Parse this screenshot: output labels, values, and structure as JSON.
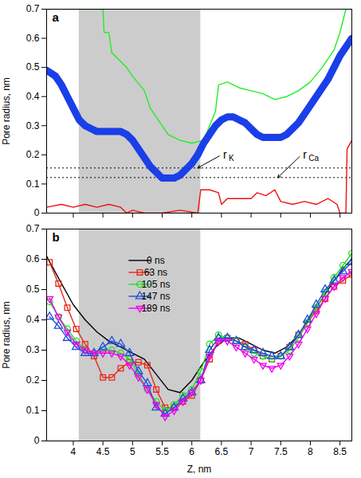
{
  "chart_data": [
    {
      "type": "line",
      "panel_label": "a",
      "y_label": "Pore radius, nm",
      "xlim": [
        3.55,
        8.7
      ],
      "xticks": [
        4,
        4.5,
        5,
        5.5,
        6,
        6.5,
        7,
        7.5,
        8,
        8.5
      ],
      "ylim": [
        0,
        0.7
      ],
      "yticks": [
        0,
        0.1,
        0.2,
        0.3,
        0.4,
        0.5,
        0.6,
        0.7
      ],
      "grid": false,
      "tick_labels": "y",
      "shaded_region": {
        "x": [
          4.1,
          6.15
        ],
        "color": "#cccccc"
      },
      "reference_lines": [
        {
          "label": "r",
          "subscript": "K",
          "value": 0.155,
          "line_style": "dotted",
          "label_at": [
            6.5,
            0.2
          ],
          "arrow_to": [
            6.1,
            0.155
          ]
        },
        {
          "label": "r",
          "subscript": "Ca",
          "value": 0.122,
          "line_style": "dotted",
          "label_at": [
            7.85,
            0.2
          ],
          "arrow_to": [
            7.45,
            0.122
          ]
        }
      ],
      "series": [
        {
          "color": "#22ee22",
          "line_style": "solid",
          "marker": "none",
          "x": [
            3.55,
            4.5,
            4.52,
            4.6,
            4.65,
            4.8,
            4.9,
            5.0,
            5.2,
            5.3,
            5.4,
            5.5,
            5.6,
            5.8,
            6.0,
            6.2,
            6.3,
            6.4,
            6.45,
            6.6,
            6.8,
            7.0,
            7.2,
            7.4,
            7.6,
            7.8,
            8.0,
            8.2,
            8.4,
            8.5,
            8.6,
            8.7
          ],
          "values": [
            0.7,
            0.7,
            0.62,
            0.62,
            0.55,
            0.52,
            0.5,
            0.47,
            0.42,
            0.36,
            0.33,
            0.3,
            0.27,
            0.25,
            0.24,
            0.25,
            0.3,
            0.35,
            0.44,
            0.45,
            0.43,
            0.42,
            0.41,
            0.39,
            0.4,
            0.42,
            0.45,
            0.5,
            0.56,
            0.62,
            0.7,
            0.7
          ]
        },
        {
          "color": "#ee1111",
          "line_style": "solid",
          "marker": "none",
          "x": [
            3.55,
            3.8,
            4.0,
            4.2,
            4.4,
            4.6,
            4.8,
            4.9,
            5.0,
            5.2,
            5.5,
            5.8,
            6.1,
            6.15,
            6.3,
            6.45,
            6.5,
            6.6,
            6.8,
            7.0,
            7.1,
            7.25,
            7.4,
            7.5,
            7.7,
            7.9,
            8.1,
            8.3,
            8.45,
            8.5,
            8.6,
            8.62,
            8.7
          ],
          "values": [
            0.02,
            0.03,
            0.02,
            0.03,
            0.02,
            0.03,
            0.02,
            0,
            0.01,
            0,
            0,
            0.01,
            0,
            0.08,
            0.08,
            0.07,
            0.03,
            0.05,
            0.05,
            0.05,
            0.07,
            0.06,
            0.08,
            0.04,
            0.03,
            0.04,
            0.03,
            0.05,
            0.03,
            0,
            0,
            0.22,
            0.25
          ]
        },
        {
          "color": "#1a3fe8",
          "line_style": "thick",
          "marker": "none",
          "x": [
            3.55,
            3.7,
            3.8,
            3.9,
            4.0,
            4.1,
            4.2,
            4.3,
            4.4,
            4.6,
            4.8,
            4.9,
            5.0,
            5.1,
            5.2,
            5.3,
            5.4,
            5.5,
            5.6,
            5.7,
            5.8,
            5.9,
            6.0,
            6.1,
            6.2,
            6.3,
            6.4,
            6.5,
            6.6,
            6.7,
            6.8,
            6.9,
            7.0,
            7.1,
            7.2,
            7.3,
            7.4,
            7.5,
            7.6,
            7.7,
            7.8,
            7.9,
            8.0,
            8.1,
            8.2,
            8.3,
            8.4,
            8.5,
            8.6,
            8.7
          ],
          "values": [
            0.49,
            0.47,
            0.44,
            0.4,
            0.36,
            0.32,
            0.3,
            0.29,
            0.28,
            0.28,
            0.28,
            0.27,
            0.25,
            0.22,
            0.19,
            0.16,
            0.14,
            0.12,
            0.12,
            0.12,
            0.13,
            0.15,
            0.17,
            0.2,
            0.24,
            0.27,
            0.3,
            0.32,
            0.33,
            0.33,
            0.32,
            0.31,
            0.29,
            0.27,
            0.26,
            0.26,
            0.26,
            0.26,
            0.27,
            0.29,
            0.31,
            0.34,
            0.37,
            0.4,
            0.43,
            0.46,
            0.5,
            0.54,
            0.57,
            0.6
          ]
        }
      ]
    },
    {
      "type": "line",
      "panel_label": "b",
      "x_label": "Z, nm",
      "y_label": "Pore radius, nm",
      "xlim": [
        3.55,
        8.7
      ],
      "xticks": [
        4,
        4.5,
        5,
        5.5,
        6,
        6.5,
        7,
        7.5,
        8,
        8.5
      ],
      "ylim": [
        0,
        0.7
      ],
      "yticks": [
        0,
        0.1,
        0.2,
        0.3,
        0.4,
        0.5,
        0.6,
        0.7
      ],
      "grid": false,
      "legend": "top",
      "shaded_region": {
        "x": [
          4.1,
          6.15
        ],
        "color": "#cccccc"
      },
      "series": [
        {
          "name": "0 ns",
          "color": "#000000",
          "line_style": "solid",
          "marker": "none",
          "x": [
            3.55,
            3.8,
            4.0,
            4.2,
            4.4,
            4.6,
            4.8,
            5.0,
            5.2,
            5.4,
            5.6,
            5.8,
            6.0,
            6.2,
            6.4,
            6.6,
            6.8,
            7.0,
            7.2,
            7.4,
            7.6,
            7.8,
            8.0,
            8.2,
            8.4,
            8.6,
            8.7
          ],
          "values": [
            0.61,
            0.52,
            0.45,
            0.4,
            0.36,
            0.33,
            0.31,
            0.29,
            0.27,
            0.22,
            0.17,
            0.16,
            0.2,
            0.26,
            0.31,
            0.34,
            0.34,
            0.32,
            0.3,
            0.29,
            0.31,
            0.35,
            0.41,
            0.47,
            0.53,
            0.58,
            0.6
          ]
        },
        {
          "name": "63 ns",
          "color": "#e8281a",
          "line_style": "solid",
          "marker": "square",
          "x": [
            3.6,
            3.75,
            3.9,
            4.05,
            4.2,
            4.35,
            4.5,
            4.65,
            4.8,
            4.95,
            5.1,
            5.25,
            5.4,
            5.55,
            5.7,
            5.85,
            6.0,
            6.15,
            6.3,
            6.45,
            6.6,
            6.75,
            6.9,
            7.05,
            7.2,
            7.35,
            7.5,
            7.65,
            7.8,
            7.95,
            8.1,
            8.25,
            8.4,
            8.55,
            8.7
          ],
          "values": [
            0.59,
            0.52,
            0.44,
            0.37,
            0.32,
            0.28,
            0.21,
            0.21,
            0.24,
            0.26,
            0.26,
            0.25,
            0.17,
            0.11,
            0.11,
            0.13,
            0.15,
            0.2,
            0.27,
            0.33,
            0.34,
            0.33,
            0.32,
            0.3,
            0.28,
            0.27,
            0.28,
            0.31,
            0.35,
            0.39,
            0.43,
            0.47,
            0.51,
            0.53,
            0.55
          ]
        },
        {
          "name": "105 ns",
          "color": "#22dd22",
          "line_style": "solid",
          "marker": "circle",
          "x": [
            3.6,
            3.75,
            3.9,
            4.05,
            4.2,
            4.35,
            4.5,
            4.65,
            4.8,
            4.95,
            5.1,
            5.25,
            5.4,
            5.55,
            5.7,
            5.85,
            6.0,
            6.15,
            6.3,
            6.45,
            6.6,
            6.75,
            6.9,
            7.05,
            7.2,
            7.35,
            7.5,
            7.65,
            7.8,
            7.95,
            8.1,
            8.25,
            8.4,
            8.55,
            8.7
          ],
          "values": [
            0.46,
            0.41,
            0.37,
            0.33,
            0.3,
            0.29,
            0.3,
            0.3,
            0.29,
            0.27,
            0.22,
            0.17,
            0.13,
            0.1,
            0.12,
            0.15,
            0.17,
            0.23,
            0.32,
            0.35,
            0.34,
            0.33,
            0.31,
            0.29,
            0.28,
            0.27,
            0.28,
            0.3,
            0.34,
            0.39,
            0.44,
            0.49,
            0.54,
            0.58,
            0.62
          ]
        },
        {
          "name": "147 ns",
          "color": "#1f4fe0",
          "line_style": "solid",
          "marker": "triangle",
          "x": [
            3.6,
            3.75,
            3.9,
            4.05,
            4.2,
            4.35,
            4.5,
            4.65,
            4.8,
            4.95,
            5.1,
            5.25,
            5.4,
            5.55,
            5.7,
            5.85,
            6.0,
            6.15,
            6.3,
            6.45,
            6.6,
            6.75,
            6.9,
            7.05,
            7.2,
            7.35,
            7.5,
            7.65,
            7.8,
            7.95,
            8.1,
            8.25,
            8.4,
            8.55,
            8.7
          ],
          "values": [
            0.41,
            0.38,
            0.34,
            0.31,
            0.29,
            0.29,
            0.31,
            0.33,
            0.32,
            0.29,
            0.23,
            0.19,
            0.11,
            0.09,
            0.11,
            0.14,
            0.16,
            0.2,
            0.3,
            0.34,
            0.34,
            0.33,
            0.31,
            0.3,
            0.29,
            0.28,
            0.28,
            0.31,
            0.35,
            0.4,
            0.45,
            0.5,
            0.53,
            0.56,
            0.59
          ]
        },
        {
          "name": "189 ns",
          "color": "#ee00ee",
          "line_style": "solid",
          "marker": "triangle-down",
          "x": [
            3.6,
            3.75,
            3.9,
            4.05,
            4.2,
            4.35,
            4.5,
            4.65,
            4.8,
            4.95,
            5.1,
            5.25,
            5.4,
            5.55,
            5.7,
            5.85,
            6.0,
            6.15,
            6.3,
            6.45,
            6.6,
            6.75,
            6.9,
            7.05,
            7.2,
            7.35,
            7.5,
            7.65,
            7.8,
            7.95,
            8.1,
            8.25,
            8.4,
            8.55,
            8.7
          ],
          "values": [
            0.47,
            0.41,
            0.36,
            0.32,
            0.3,
            0.29,
            0.29,
            0.29,
            0.28,
            0.25,
            0.21,
            0.17,
            0.12,
            0.08,
            0.1,
            0.13,
            0.16,
            0.2,
            0.28,
            0.33,
            0.33,
            0.31,
            0.29,
            0.27,
            0.25,
            0.24,
            0.25,
            0.28,
            0.32,
            0.37,
            0.42,
            0.47,
            0.51,
            0.54,
            0.56
          ]
        }
      ]
    }
  ]
}
